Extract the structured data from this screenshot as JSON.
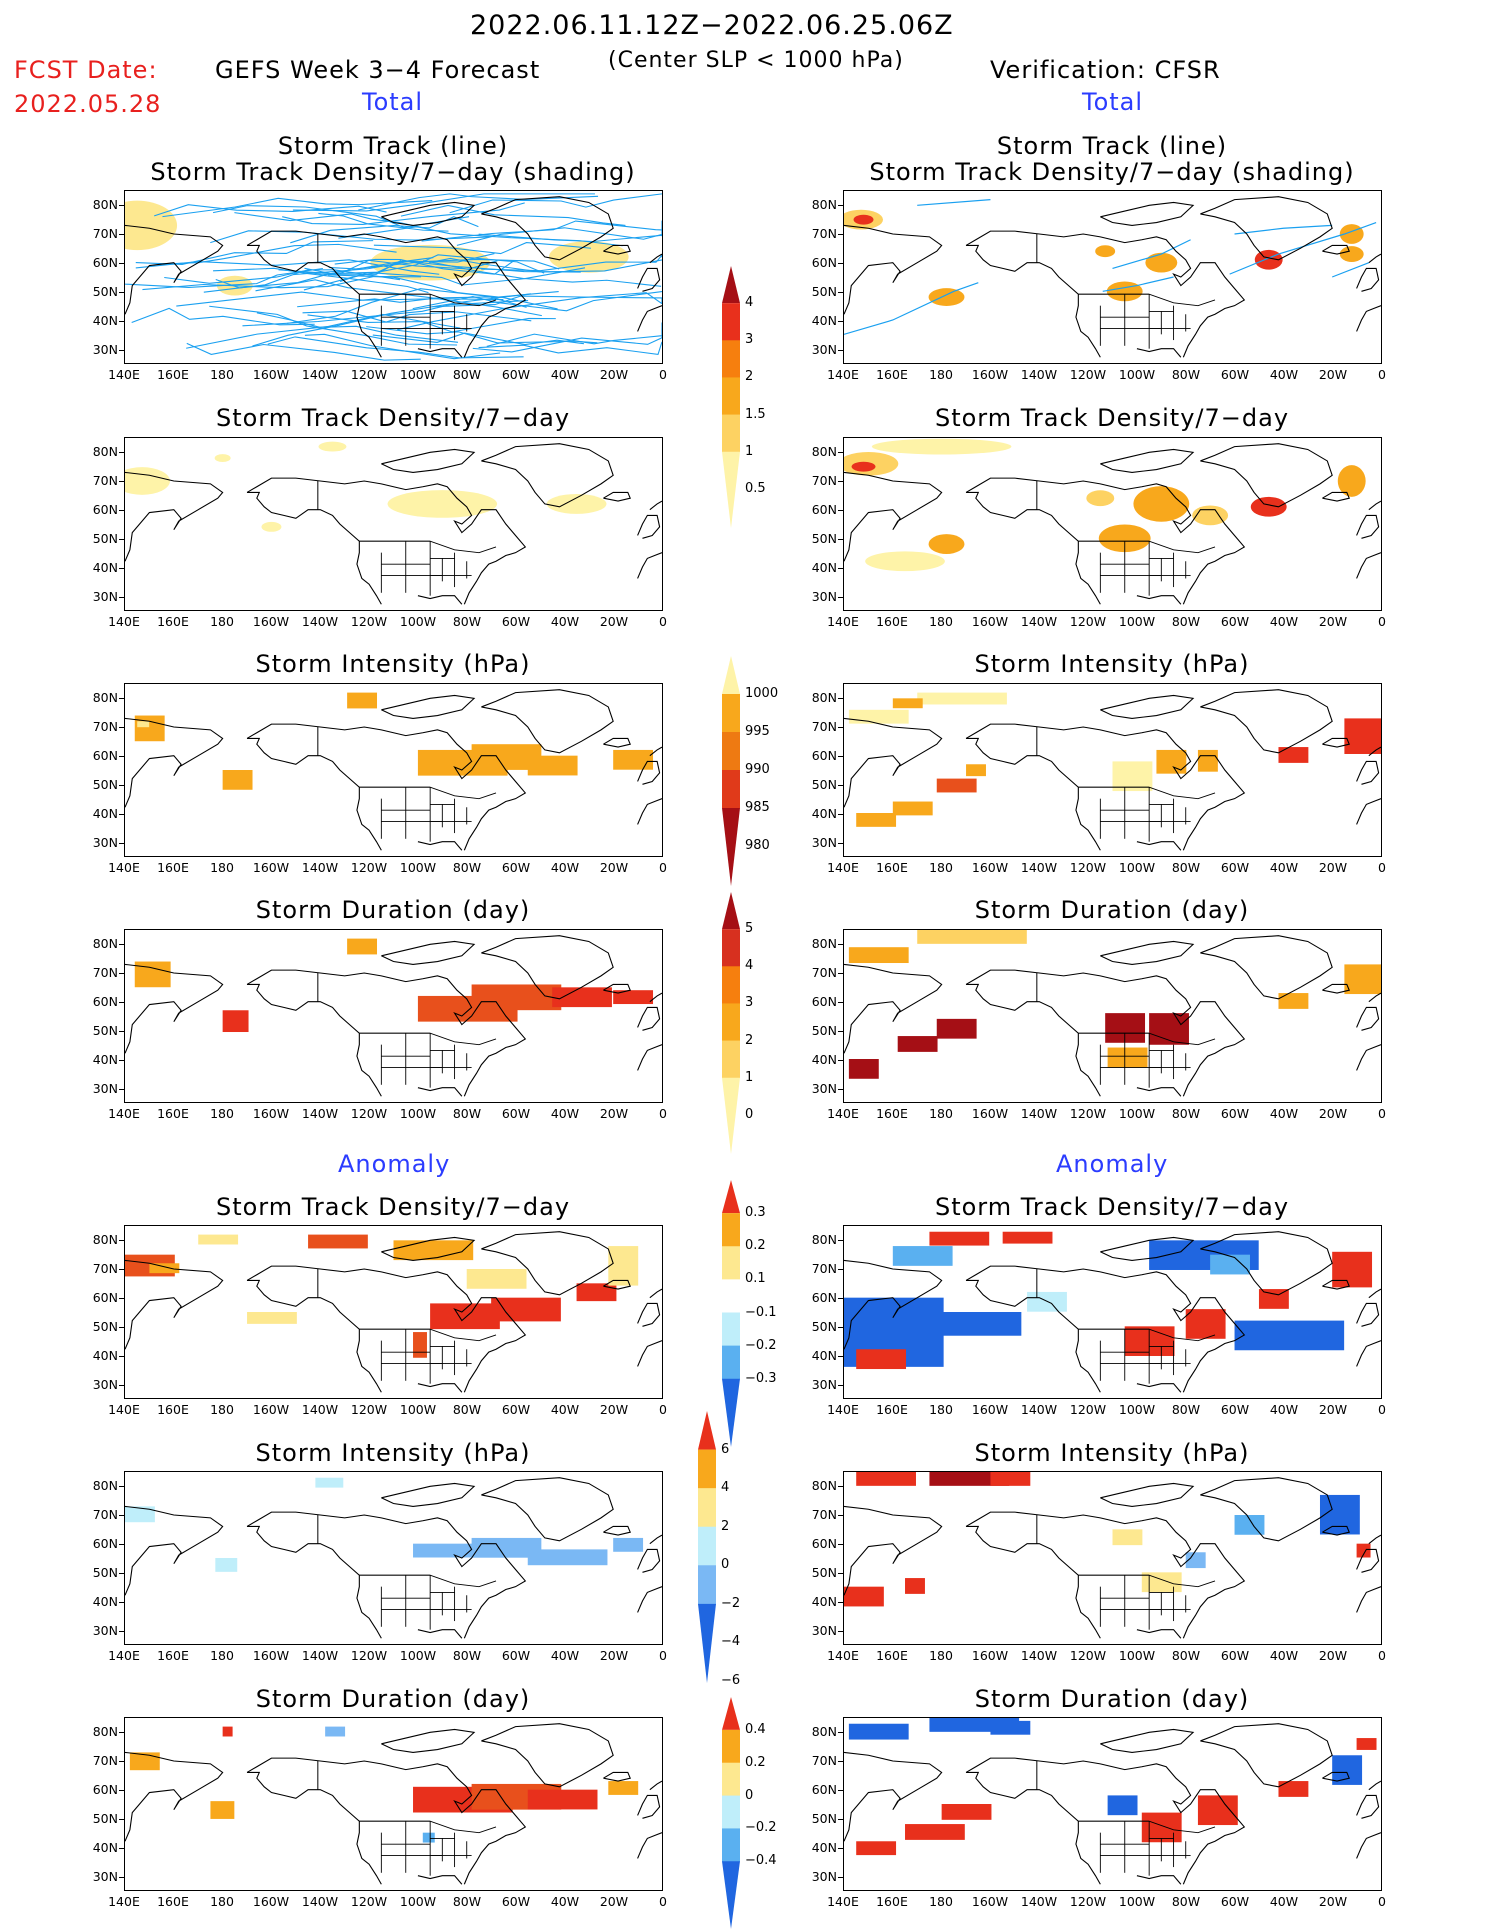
{
  "header": {
    "date_range": "2022.06.11.12Z−2022.06.25.06Z",
    "criterion": "(Center SLP < 1000 hPa)",
    "fcst_label": "FCST Date:",
    "fcst_date": "2022.05.28",
    "left_model": "GEFS Week 3−4 Forecast",
    "right_model": "Verification: CFSR",
    "total_left": "Total",
    "total_right": "Total"
  },
  "sections": {
    "anomaly_left": "Anomaly",
    "anomaly_right": "Anomaly"
  },
  "panel_titles": {
    "track_line": "Storm Track (line)",
    "track_density_shading": "Storm Track Density/7−day (shading)",
    "track_density": "Storm Track Density/7−day",
    "intensity": "Storm Intensity (hPa)",
    "duration": "Storm Duration (day)"
  },
  "axes": {
    "lat_labels": [
      "80N",
      "70N",
      "60N",
      "50N",
      "40N",
      "30N"
    ],
    "lon_labels": [
      "140E",
      "160E",
      "180",
      "160W",
      "140W",
      "120W",
      "100W",
      "80W",
      "60W",
      "40W",
      "20W",
      "0"
    ]
  },
  "colorbars": {
    "density_total": {
      "labels": [
        "4",
        "3",
        "2",
        "1.5",
        "1",
        "0.5"
      ],
      "colors": [
        "#a50f15",
        "#e8301c",
        "#f67f0e",
        "#f8a81c",
        "#fdd262",
        "#fef3a8"
      ]
    },
    "intensity_total": {
      "labels": [
        "1000",
        "995",
        "990",
        "985",
        "980"
      ],
      "colors": [
        "#fef3a8",
        "#f8a81c",
        "#ee7a12",
        "#e03a1a",
        "#a50f15"
      ]
    },
    "duration_total": {
      "labels": [
        "5",
        "4",
        "3",
        "2",
        "1",
        "0"
      ],
      "colors": [
        "#a50f15",
        "#d7301f",
        "#f67f0e",
        "#f8a81c",
        "#fdd262",
        "#fef3a8"
      ]
    },
    "density_anom": {
      "labels": [
        "0.3",
        "0.2",
        "0.1",
        "−0.1",
        "−0.2",
        "−0.3"
      ],
      "colors": [
        "#e8301c",
        "#f8a81c",
        "#fde890",
        "#ffffff",
        "#bfeefa",
        "#5ab0f0",
        "#2066e0"
      ]
    },
    "intensity_anom": {
      "labels": [
        "6",
        "4",
        "2",
        "0",
        "−2",
        "−4",
        "−6"
      ],
      "colors": [
        "#e8301c",
        "#f8a81c",
        "#fde890",
        "#bfeefa",
        "#7ab8f4",
        "#2066e0"
      ]
    },
    "duration_anom": {
      "labels": [
        "0.4",
        "0.2",
        "0",
        "−0.2",
        "−0.4"
      ],
      "colors": [
        "#e8301c",
        "#f8a81c",
        "#fde890",
        "#bfeefa",
        "#5ab0f0",
        "#2066e0"
      ]
    }
  },
  "colors": {
    "storm_track_line": "#1aa0f0",
    "title_red": "#e8201e",
    "title_blue": "#2b3cff"
  }
}
